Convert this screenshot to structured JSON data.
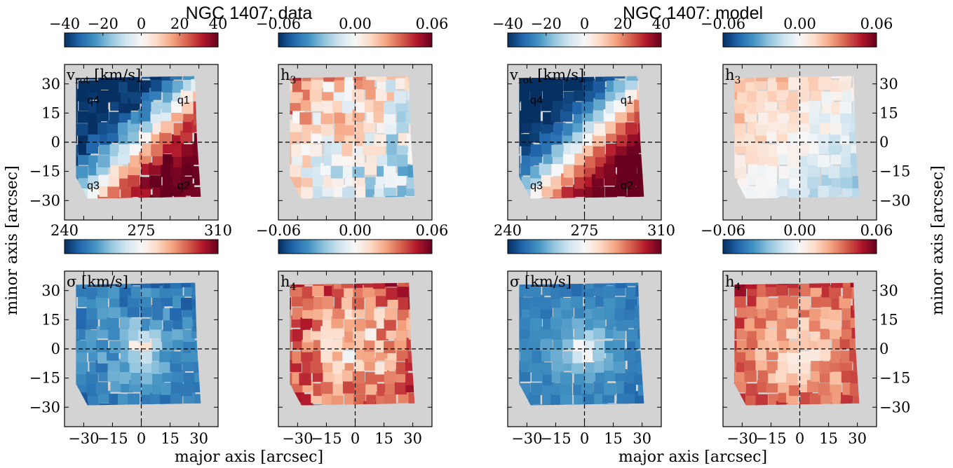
{
  "figure": {
    "title_data": "NGC 1407: data",
    "title_model": "NGC 1407: model",
    "xlabel": "major axis [arcsec]",
    "ylabel": "minor axis [arcsec]"
  },
  "colors": {
    "background": "#d3d3d3",
    "cmap": [
      "#053061",
      "#2166ac",
      "#4393c3",
      "#92c5de",
      "#d1e5f0",
      "#f7f7f7",
      "#fddbc7",
      "#f4a582",
      "#d6604d",
      "#b2182b",
      "#67001f"
    ]
  },
  "chart_data": [
    {
      "type": "heatmap",
      "group": "data",
      "quantity": "vrot",
      "label": "v",
      "label_sub": "rot",
      "label_unit": " [km/s]",
      "colorbar_ticks": [
        "−40",
        "−20",
        "0",
        "20",
        "40"
      ],
      "colorbar_range": [
        -40,
        40
      ],
      "xlim": [
        -40,
        40
      ],
      "ylim": [
        -40,
        40
      ],
      "yticks": [
        "30",
        "15",
        "0",
        "−15",
        "−30"
      ],
      "quadrant_labels": [
        "q1",
        "q2",
        "q3",
        "q4"
      ]
    },
    {
      "type": "heatmap",
      "group": "data",
      "quantity": "h3",
      "label": "h",
      "label_sub": "3",
      "label_unit": "",
      "colorbar_ticks": [
        "−0.06",
        "0.00",
        "0.06"
      ],
      "colorbar_range": [
        -0.06,
        0.06
      ],
      "xlim": [
        -40,
        40
      ],
      "ylim": [
        -40,
        40
      ]
    },
    {
      "type": "heatmap",
      "group": "data",
      "quantity": "sigma",
      "label": "σ",
      "label_sub": "",
      "label_unit": " [km/s]",
      "colorbar_ticks": [
        "240",
        "275",
        "310"
      ],
      "colorbar_range": [
        240,
        310
      ],
      "xlim": [
        -40,
        40
      ],
      "ylim": [
        -40,
        40
      ],
      "xticks": [
        "−30",
        "−15",
        "0",
        "15",
        "30"
      ],
      "yticks": [
        "30",
        "15",
        "0",
        "−15",
        "−30"
      ]
    },
    {
      "type": "heatmap",
      "group": "data",
      "quantity": "h4",
      "label": "h",
      "label_sub": "4",
      "label_unit": "",
      "colorbar_ticks": [
        "−0.06",
        "0.00",
        "0.06"
      ],
      "colorbar_range": [
        -0.06,
        0.06
      ],
      "xlim": [
        -40,
        40
      ],
      "ylim": [
        -40,
        40
      ],
      "xticks": [
        "−30",
        "−15",
        "0",
        "15",
        "30"
      ]
    },
    {
      "type": "heatmap",
      "group": "model",
      "quantity": "vrot",
      "label": "v",
      "label_sub": "rot",
      "label_unit": " [km/s]",
      "colorbar_ticks": [
        "−40",
        "−20",
        "0",
        "20",
        "40"
      ],
      "colorbar_range": [
        -40,
        40
      ],
      "xlim": [
        -40,
        40
      ],
      "ylim": [
        -40,
        40
      ],
      "quadrant_labels": [
        "q1",
        "q2",
        "q3",
        "q4"
      ]
    },
    {
      "type": "heatmap",
      "group": "model",
      "quantity": "h3",
      "label": "h",
      "label_sub": "3",
      "label_unit": "",
      "colorbar_ticks": [
        "−0.06",
        "0.00",
        "0.06"
      ],
      "colorbar_range": [
        -0.06,
        0.06
      ],
      "xlim": [
        -40,
        40
      ],
      "ylim": [
        -40,
        40
      ],
      "yticks": [
        "30",
        "15",
        "0",
        "−15",
        "−30"
      ]
    },
    {
      "type": "heatmap",
      "group": "model",
      "quantity": "sigma",
      "label": "σ",
      "label_sub": "",
      "label_unit": " [km/s]",
      "colorbar_ticks": [
        "240",
        "275",
        "310"
      ],
      "colorbar_range": [
        240,
        310
      ],
      "xlim": [
        -40,
        40
      ],
      "ylim": [
        -40,
        40
      ],
      "xticks": [
        "−30",
        "−15",
        "0",
        "15",
        "30"
      ]
    },
    {
      "type": "heatmap",
      "group": "model",
      "quantity": "h4",
      "label": "h",
      "label_sub": "4",
      "label_unit": "",
      "colorbar_ticks": [
        "−0.06",
        "0.00",
        "0.06"
      ],
      "colorbar_range": [
        -0.06,
        0.06
      ],
      "xlim": [
        -40,
        40
      ],
      "ylim": [
        -40,
        40
      ],
      "xticks": [
        "−30",
        "−15",
        "0",
        "15",
        "30"
      ],
      "yticks": [
        "30",
        "15",
        "0",
        "−15",
        "−30"
      ]
    }
  ]
}
